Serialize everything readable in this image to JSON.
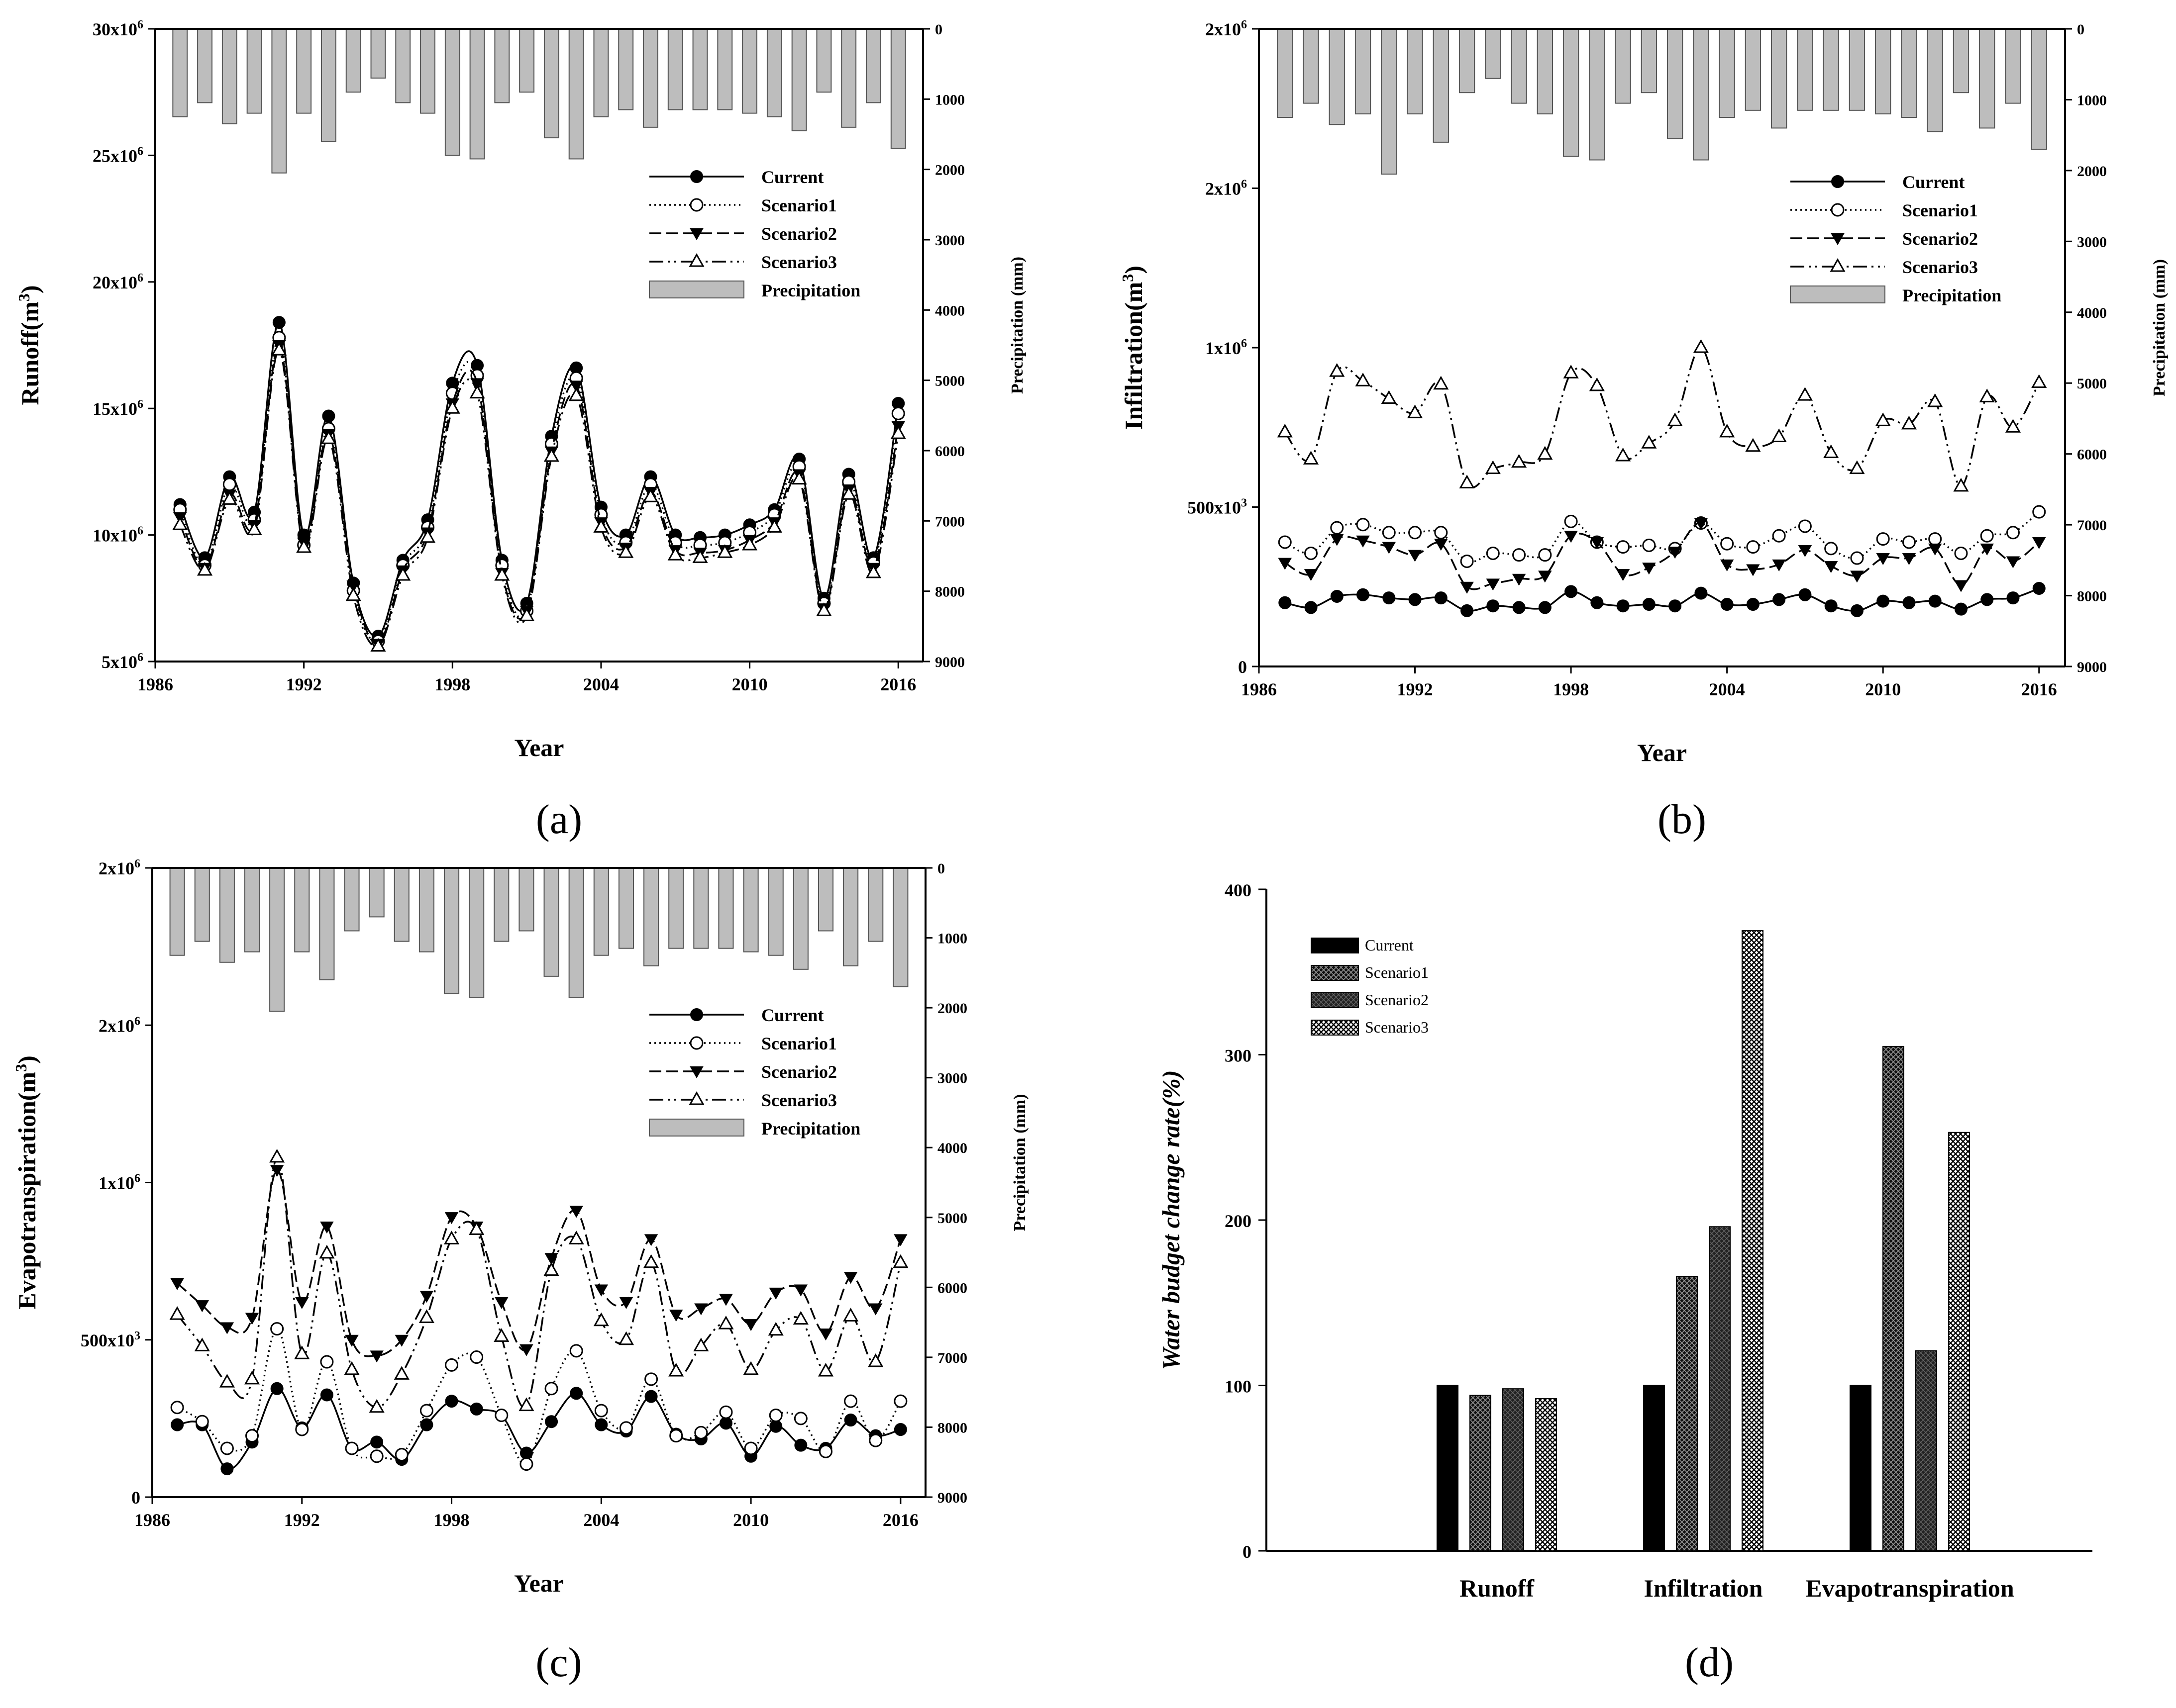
{
  "years": [
    1987,
    1988,
    1989,
    1990,
    1991,
    1992,
    1993,
    1994,
    1995,
    1996,
    1997,
    1998,
    1999,
    2000,
    2001,
    2002,
    2003,
    2004,
    2005,
    2006,
    2007,
    2008,
    2009,
    2010,
    2011,
    2012,
    2013,
    2014,
    2015,
    2016
  ],
  "precipitation_mm": [
    1250,
    1050,
    1350,
    1200,
    2050,
    1200,
    1600,
    900,
    700,
    1050,
    1200,
    1800,
    1850,
    1050,
    900,
    1550,
    1850,
    1250,
    1150,
    1400,
    1150,
    1150,
    1150,
    1200,
    1250,
    1450,
    900,
    1400,
    1050,
    1700
  ],
  "chart_data": [
    {
      "type": "line",
      "panel_label": "(a)",
      "xlabel": "Year",
      "ylabel": "Runoff(m",
      "ylabel_sup": "3",
      "ylabel_close": ")",
      "y2label": "Precipitation (mm)",
      "x_ticks": [
        "1986",
        "1992",
        "1998",
        "2004",
        "2010",
        "2016"
      ],
      "y_ticks": [
        {
          "base": "5x10",
          "exp": "6",
          "value": 5000000
        },
        {
          "base": "10x10",
          "exp": "6",
          "value": 10000000
        },
        {
          "base": "15x10",
          "exp": "6",
          "value": 15000000
        },
        {
          "base": "20x10",
          "exp": "6",
          "value": 20000000
        },
        {
          "base": "25x10",
          "exp": "6",
          "value": 25000000
        },
        {
          "base": "30x10",
          "exp": "6",
          "value": 30000000
        }
      ],
      "y2_ticks": [
        "0",
        "1000",
        "2000",
        "3000",
        "4000",
        "5000",
        "6000",
        "7000",
        "8000",
        "9000"
      ],
      "xlim": [
        1986,
        2017
      ],
      "ylim": [
        5000000,
        30000000
      ],
      "y2lim": [
        0,
        9000
      ],
      "legend": [
        "Current",
        "Scenario1",
        "Scenario2",
        "Scenario3",
        "Precipitation"
      ],
      "series": [
        {
          "name": "Current",
          "values": [
            11200000,
            9100000,
            12300000,
            10900000,
            18400000,
            10000000,
            14700000,
            8100000,
            6000000,
            9000000,
            10600000,
            16000000,
            16700000,
            9000000,
            7300000,
            13900000,
            16600000,
            11100000,
            10000000,
            12300000,
            10000000,
            9900000,
            10000000,
            10400000,
            11000000,
            13000000,
            7500000,
            12400000,
            9100000,
            15200000
          ]
        },
        {
          "name": "Scenario1",
          "values": [
            11000000,
            8800000,
            12000000,
            10600000,
            17800000,
            9600000,
            14200000,
            7800000,
            5800000,
            8800000,
            10300000,
            15600000,
            16300000,
            8800000,
            7000000,
            13600000,
            16200000,
            10800000,
            9700000,
            12000000,
            9700000,
            9600000,
            9700000,
            10100000,
            10800000,
            12700000,
            7300000,
            12100000,
            8900000,
            14800000
          ]
        },
        {
          "name": "Scenario2",
          "values": [
            10700000,
            8700000,
            11600000,
            10400000,
            17500000,
            9700000,
            14000000,
            8000000,
            5700000,
            8600000,
            10100000,
            15200000,
            16000000,
            8500000,
            7000000,
            13300000,
            15900000,
            10500000,
            9500000,
            11700000,
            9400000,
            9300000,
            9400000,
            9800000,
            10500000,
            12400000,
            7100000,
            11800000,
            8700000,
            14300000
          ]
        },
        {
          "name": "Scenario3",
          "values": [
            10400000,
            8600000,
            11400000,
            10200000,
            17300000,
            9500000,
            13800000,
            7600000,
            5600000,
            8400000,
            9900000,
            15000000,
            15600000,
            8400000,
            6800000,
            13100000,
            15500000,
            10300000,
            9300000,
            11500000,
            9200000,
            9100000,
            9300000,
            9600000,
            10300000,
            12200000,
            7000000,
            11600000,
            8500000,
            14000000
          ]
        }
      ]
    },
    {
      "type": "line",
      "panel_label": "(b)",
      "xlabel": "Year",
      "ylabel": "Infiltration(m",
      "ylabel_sup": "3",
      "ylabel_close": ")",
      "y2label": "Precipitation (mm)",
      "x_ticks": [
        "1986",
        "1992",
        "1998",
        "2004",
        "2010",
        "2016"
      ],
      "y_ticks": [
        {
          "base": "0",
          "exp": "",
          "value": 0
        },
        {
          "base": "500x10",
          "exp": "3",
          "value": 500000
        },
        {
          "base": "1x10",
          "exp": "6",
          "value": 1000000
        },
        {
          "base": "2x10",
          "exp": "6",
          "value": 1500000
        },
        {
          "base": "2x10",
          "exp": "6",
          "value": 2000000
        }
      ],
      "y2_ticks": [
        "0",
        "1000",
        "2000",
        "3000",
        "4000",
        "5000",
        "6000",
        "7000",
        "8000",
        "9000"
      ],
      "xlim": [
        1986,
        2017
      ],
      "ylim": [
        0,
        2000000
      ],
      "y2lim": [
        0,
        9000
      ],
      "legend": [
        "Current",
        "Scenario1",
        "Scenario2",
        "Scenario3",
        "Precipitation"
      ],
      "series": [
        {
          "name": "Current",
          "values": [
            200000,
            185000,
            220000,
            225000,
            215000,
            210000,
            215000,
            175000,
            190000,
            185000,
            185000,
            235000,
            200000,
            190000,
            195000,
            190000,
            230000,
            195000,
            195000,
            210000,
            225000,
            190000,
            175000,
            205000,
            200000,
            205000,
            180000,
            210000,
            215000,
            245000
          ]
        },
        {
          "name": "Scenario1",
          "values": [
            390000,
            355000,
            435000,
            445000,
            420000,
            420000,
            420000,
            330000,
            355000,
            350000,
            350000,
            455000,
            390000,
            375000,
            380000,
            370000,
            450000,
            385000,
            375000,
            410000,
            440000,
            370000,
            340000,
            400000,
            390000,
            400000,
            355000,
            410000,
            420000,
            485000
          ]
        },
        {
          "name": "Scenario2",
          "values": [
            325000,
            290000,
            400000,
            395000,
            375000,
            350000,
            385000,
            250000,
            260000,
            275000,
            285000,
            410000,
            390000,
            290000,
            310000,
            360000,
            450000,
            320000,
            305000,
            320000,
            365000,
            315000,
            285000,
            340000,
            340000,
            370000,
            255000,
            370000,
            330000,
            390000
          ]
        },
        {
          "name": "Scenario3",
          "values": [
            735000,
            650000,
            925000,
            895000,
            840000,
            795000,
            885000,
            575000,
            620000,
            640000,
            665000,
            920000,
            880000,
            660000,
            700000,
            770000,
            1000000,
            735000,
            690000,
            720000,
            850000,
            670000,
            620000,
            770000,
            760000,
            830000,
            565000,
            845000,
            750000,
            890000
          ]
        }
      ]
    },
    {
      "type": "line",
      "panel_label": "(c)",
      "xlabel": "Year",
      "ylabel": "Evapotranspiration(m",
      "ylabel_sup": "3",
      "ylabel_close": ")",
      "y2label": "Precipitation (mm)",
      "x_ticks": [
        "1986",
        "1992",
        "1998",
        "2004",
        "2010",
        "2016"
      ],
      "y_ticks": [
        {
          "base": "0",
          "exp": "",
          "value": 0
        },
        {
          "base": "500x10",
          "exp": "3",
          "value": 500000
        },
        {
          "base": "1x10",
          "exp": "6",
          "value": 1000000
        },
        {
          "base": "2x10",
          "exp": "6",
          "value": 1500000
        },
        {
          "base": "2x10",
          "exp": "6",
          "value": 2000000
        }
      ],
      "y2_ticks": [
        "0",
        "1000",
        "2000",
        "3000",
        "4000",
        "5000",
        "6000",
        "7000",
        "8000",
        "9000"
      ],
      "xlim": [
        1986,
        2017
      ],
      "ylim": [
        0,
        2000000
      ],
      "y2lim": [
        0,
        9000
      ],
      "legend": [
        "Current",
        "Scenario1",
        "Scenario2",
        "Scenario3",
        "Precipitation"
      ],
      "series": [
        {
          "name": "Current",
          "values": [
            230000,
            230000,
            90000,
            175000,
            345000,
            220000,
            325000,
            155000,
            175000,
            120000,
            230000,
            305000,
            280000,
            260000,
            140000,
            240000,
            330000,
            230000,
            210000,
            320000,
            200000,
            185000,
            235000,
            130000,
            225000,
            165000,
            155000,
            245000,
            195000,
            215000
          ]
        },
        {
          "name": "Scenario1",
          "values": [
            285000,
            240000,
            155000,
            195000,
            535000,
            215000,
            430000,
            155000,
            130000,
            135000,
            275000,
            420000,
            445000,
            260000,
            105000,
            345000,
            465000,
            275000,
            220000,
            375000,
            195000,
            205000,
            270000,
            155000,
            260000,
            250000,
            145000,
            305000,
            180000,
            305000
          ]
        },
        {
          "name": "Scenario2",
          "values": [
            680000,
            610000,
            540000,
            570000,
            1040000,
            620000,
            860000,
            500000,
            450000,
            500000,
            640000,
            890000,
            860000,
            620000,
            470000,
            760000,
            910000,
            660000,
            620000,
            820000,
            580000,
            600000,
            630000,
            550000,
            650000,
            660000,
            520000,
            700000,
            600000,
            820000
          ]
        },
        {
          "name": "Scenario3",
          "values": [
            580000,
            480000,
            365000,
            375000,
            1080000,
            455000,
            775000,
            405000,
            285000,
            390000,
            570000,
            820000,
            850000,
            510000,
            290000,
            720000,
            820000,
            560000,
            500000,
            745000,
            400000,
            480000,
            550000,
            405000,
            530000,
            565000,
            400000,
            575000,
            430000,
            745000
          ]
        }
      ]
    },
    {
      "type": "bar",
      "panel_label": "(d)",
      "xlabel": "",
      "ylabel": "Water budget change rate(%)",
      "categories": [
        "Runoff",
        "Infiltration",
        "Evapotranspiration"
      ],
      "y_ticks": [
        "0",
        "100",
        "200",
        "300",
        "400"
      ],
      "ylim": [
        0,
        400
      ],
      "legend": [
        "Current",
        "Scenario1",
        "Scenario2",
        "Scenario3"
      ],
      "series": [
        {
          "name": "Current",
          "values": [
            100,
            100,
            100
          ]
        },
        {
          "name": "Scenario1",
          "values": [
            94,
            166,
            305
          ]
        },
        {
          "name": "Scenario2",
          "values": [
            98,
            196,
            121
          ]
        },
        {
          "name": "Scenario3",
          "values": [
            92,
            375,
            253
          ]
        }
      ]
    }
  ]
}
